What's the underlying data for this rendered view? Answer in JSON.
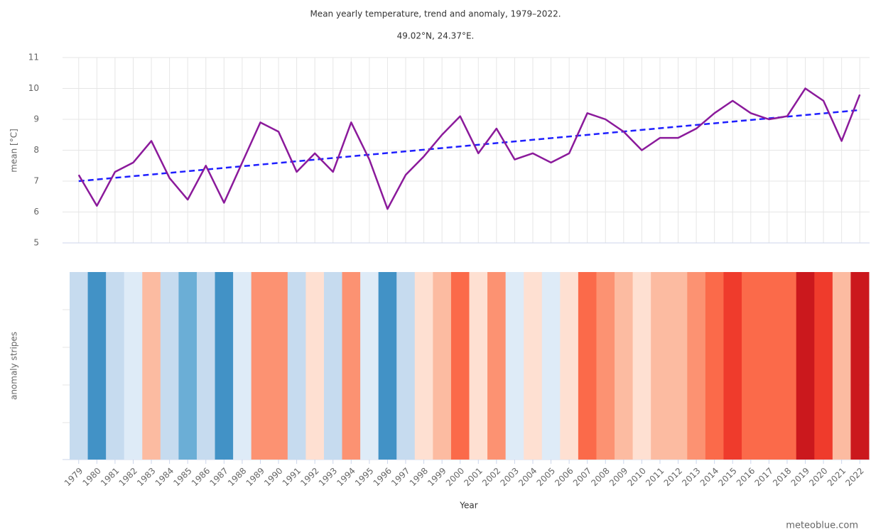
{
  "chart_data": {
    "type": "line",
    "title": "Mean yearly temperature, trend and anomaly, 1979–2022.",
    "subtitle": "49.02°N, 24.37°E.",
    "y_label": "mean [°C]",
    "stripes_label": "anomaly stripes",
    "x_label": "Year",
    "credit": "meteoblue.com",
    "categories": [
      "1979",
      "1980",
      "1981",
      "1982",
      "1983",
      "1984",
      "1985",
      "1986",
      "1987",
      "1988",
      "1989",
      "1990",
      "1991",
      "1992",
      "1993",
      "1994",
      "1995",
      "1996",
      "1997",
      "1998",
      "1999",
      "2000",
      "2001",
      "2002",
      "2003",
      "2004",
      "2005",
      "2006",
      "2007",
      "2008",
      "2009",
      "2010",
      "2011",
      "2012",
      "2013",
      "2014",
      "2015",
      "2016",
      "2017",
      "2018",
      "2019",
      "2020",
      "2021",
      "2022"
    ],
    "series": [
      {
        "color": "#8b1a9b",
        "values": [
          7.2,
          6.2,
          7.3,
          7.6,
          8.3,
          7.1,
          6.4,
          7.5,
          6.3,
          7.6,
          8.9,
          8.6,
          7.3,
          7.9,
          7.3,
          8.9,
          7.7,
          6.1,
          7.2,
          7.8,
          8.5,
          9.1,
          7.9,
          8.7,
          7.7,
          7.9,
          7.6,
          7.9,
          9.2,
          9.0,
          8.6,
          8.0,
          8.4,
          8.4,
          8.7,
          9.2,
          9.6,
          9.2,
          9.0,
          9.1,
          10.0,
          9.6,
          8.3,
          9.8
        ]
      }
    ],
    "trend": {
      "color": "#1f1fff",
      "values": [
        7.0,
        9.3
      ]
    },
    "stripe_colors": [
      "#c6dbef",
      "#4292c6",
      "#c6dbef",
      "#deebf7",
      "#fcbba1",
      "#c6dbef",
      "#6baed6",
      "#c6dbef",
      "#4292c6",
      "#deebf7",
      "#fc9272",
      "#fc9272",
      "#c6dbef",
      "#fee0d2",
      "#c6dbef",
      "#fc9272",
      "#deebf7",
      "#4292c6",
      "#c6dbef",
      "#fee0d2",
      "#fcbba1",
      "#fb6a4a",
      "#fee0d2",
      "#fc9272",
      "#deebf7",
      "#fee0d2",
      "#deebf7",
      "#fee0d2",
      "#fb6a4a",
      "#fc9272",
      "#fcbba1",
      "#fee0d2",
      "#fcbba1",
      "#fcbba1",
      "#fc9272",
      "#fb6a4a",
      "#ef3b2c",
      "#fb6a4a",
      "#fb6a4a",
      "#fb6a4a",
      "#cb181d",
      "#ef3b2c",
      "#fcbba1",
      "#cb181d"
    ],
    "ylim": [
      5,
      11
    ],
    "yticks": [
      5,
      6,
      7,
      8,
      9,
      10,
      11
    ],
    "grid": true
  }
}
